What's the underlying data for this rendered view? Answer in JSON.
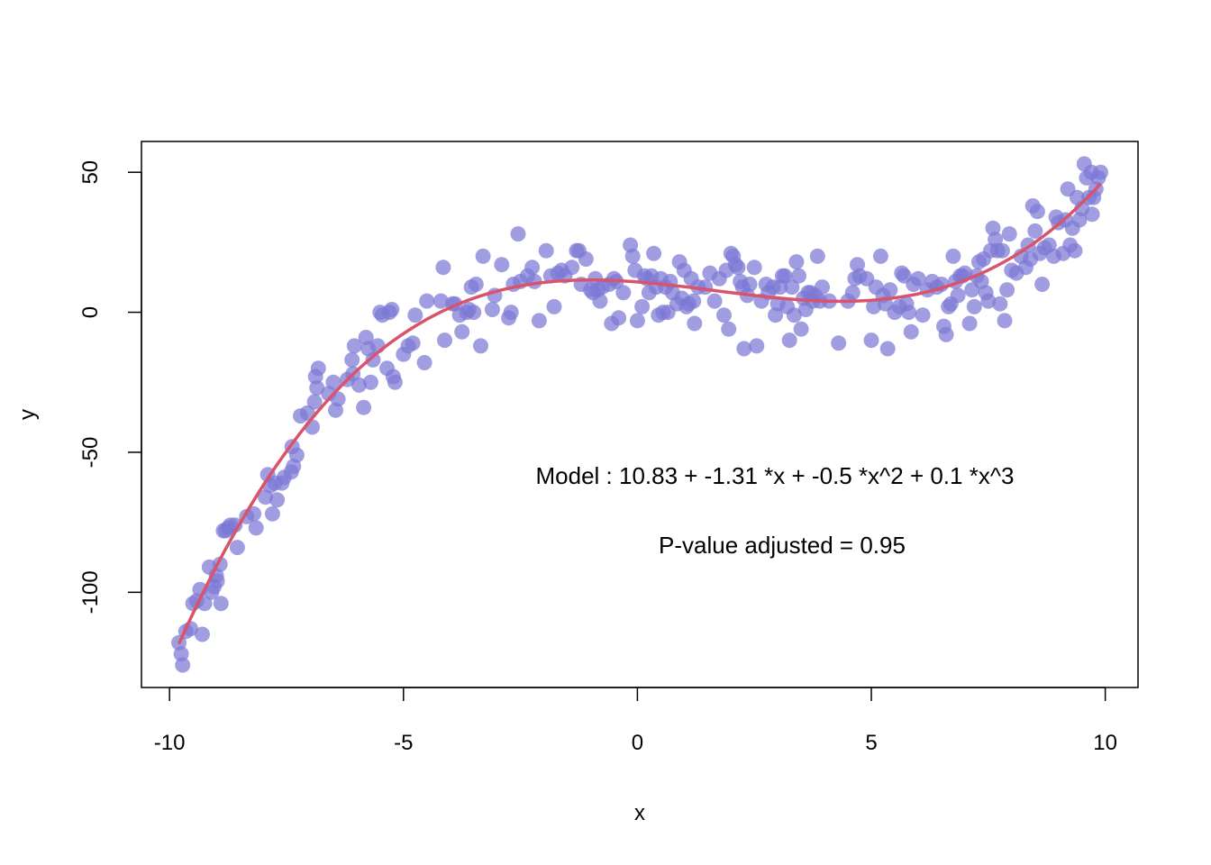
{
  "chart_data": {
    "type": "scatter",
    "title": "",
    "xlabel": "x",
    "ylabel": "y",
    "xlim": [
      -10.6,
      10.7
    ],
    "ylim": [
      -134,
      61
    ],
    "x_ticks": [
      -10,
      -5,
      0,
      5,
      10
    ],
    "x_tick_labels": [
      "-10",
      "-5",
      "0",
      "5",
      "10"
    ],
    "y_ticks": [
      -100,
      -50,
      0,
      50
    ],
    "y_tick_labels": [
      "-100",
      "-50",
      "0",
      "50"
    ],
    "grid": false,
    "legend": "none",
    "point_color": "#7b78d6",
    "line_color": "#d9536b",
    "annotations": [
      "Model :  10.83  +  -1.31 *x + -0.5 *x^2 + 0.1 *x^3",
      "P-value adjusted =  0.95"
    ],
    "fit": {
      "name": "",
      "coefficients": [
        10.83,
        -1.31,
        -0.5,
        0.1
      ],
      "x_range": [
        -9.8,
        9.9
      ]
    },
    "points": [
      [
        -9.8,
        -118
      ],
      [
        -9.75,
        -122
      ],
      [
        -9.72,
        -126
      ],
      [
        -9.65,
        -114
      ],
      [
        -9.55,
        -113
      ],
      [
        -9.5,
        -104
      ],
      [
        -9.42,
        -103
      ],
      [
        -9.35,
        -99
      ],
      [
        -9.3,
        -115
      ],
      [
        -9.25,
        -104
      ],
      [
        -9.15,
        -91
      ],
      [
        -9.1,
        -100
      ],
      [
        -9.05,
        -98
      ],
      [
        -9.0,
        -94
      ],
      [
        -8.98,
        -96
      ],
      [
        -8.92,
        -90
      ],
      [
        -8.9,
        -104
      ],
      [
        -8.85,
        -78
      ],
      [
        -8.8,
        -78
      ],
      [
        -8.75,
        -77
      ],
      [
        -8.7,
        -76
      ],
      [
        -8.6,
        -76
      ],
      [
        -8.55,
        -84
      ],
      [
        -8.35,
        -73
      ],
      [
        -8.2,
        -72
      ],
      [
        -8.15,
        -77
      ],
      [
        -7.95,
        -66
      ],
      [
        -7.9,
        -58
      ],
      [
        -7.85,
        -62
      ],
      [
        -7.8,
        -72
      ],
      [
        -7.75,
        -61
      ],
      [
        -7.7,
        -67
      ],
      [
        -7.6,
        -61
      ],
      [
        -7.55,
        -59
      ],
      [
        -7.4,
        -57
      ],
      [
        -7.38,
        -48
      ],
      [
        -7.35,
        -55
      ],
      [
        -7.28,
        -51
      ],
      [
        -7.2,
        -37
      ],
      [
        -7.05,
        -36
      ],
      [
        -6.95,
        -41
      ],
      [
        -6.9,
        -32
      ],
      [
        -6.88,
        -23
      ],
      [
        -6.85,
        -27
      ],
      [
        -6.82,
        -20
      ],
      [
        -6.6,
        -29
      ],
      [
        -6.5,
        -25
      ],
      [
        -6.45,
        -35
      ],
      [
        -6.4,
        -31
      ],
      [
        -6.2,
        -24
      ],
      [
        -6.1,
        -17
      ],
      [
        -6.08,
        -22
      ],
      [
        -6.05,
        -12
      ],
      [
        -5.95,
        -26
      ],
      [
        -5.85,
        -34
      ],
      [
        -5.8,
        -9
      ],
      [
        -5.75,
        -13
      ],
      [
        -5.7,
        -25
      ],
      [
        -5.65,
        -17
      ],
      [
        -5.55,
        -12
      ],
      [
        -5.5,
        0
      ],
      [
        -5.45,
        -1
      ],
      [
        -5.35,
        -20
      ],
      [
        -5.3,
        0
      ],
      [
        -5.25,
        1
      ],
      [
        -5.22,
        -23
      ],
      [
        -5.18,
        -25
      ],
      [
        -5.0,
        -15
      ],
      [
        -4.9,
        -12
      ],
      [
        -4.8,
        -11
      ],
      [
        -4.75,
        -1
      ],
      [
        -4.55,
        -18
      ],
      [
        -4.5,
        4
      ],
      [
        -4.2,
        4
      ],
      [
        -4.15,
        16
      ],
      [
        -4.12,
        -10
      ],
      [
        -3.95,
        3
      ],
      [
        -3.9,
        3
      ],
      [
        -3.8,
        -1
      ],
      [
        -3.75,
        -7
      ],
      [
        -3.65,
        0
      ],
      [
        -3.6,
        1
      ],
      [
        -3.55,
        9
      ],
      [
        -3.5,
        0
      ],
      [
        -3.45,
        10
      ],
      [
        -3.35,
        -12
      ],
      [
        -3.3,
        20
      ],
      [
        -3.1,
        1
      ],
      [
        -3.05,
        6
      ],
      [
        -2.9,
        17
      ],
      [
        -2.75,
        -2
      ],
      [
        -2.7,
        0
      ],
      [
        -2.65,
        10
      ],
      [
        -2.55,
        28
      ],
      [
        -2.5,
        11
      ],
      [
        -2.35,
        13
      ],
      [
        -2.25,
        16
      ],
      [
        -2.2,
        11
      ],
      [
        -2.1,
        -3
      ],
      [
        -1.95,
        22
      ],
      [
        -1.85,
        13
      ],
      [
        -1.78,
        2
      ],
      [
        -1.7,
        14
      ],
      [
        -1.62,
        15
      ],
      [
        -1.55,
        13
      ],
      [
        -1.4,
        16
      ],
      [
        -1.3,
        22
      ],
      [
        -1.25,
        22
      ],
      [
        -1.2,
        10
      ],
      [
        -1.1,
        19
      ],
      [
        -1.0,
        8
      ],
      [
        -0.95,
        7
      ],
      [
        -0.9,
        12
      ],
      [
        -0.85,
        8
      ],
      [
        -0.8,
        4
      ],
      [
        -0.75,
        9
      ],
      [
        -0.6,
        10
      ],
      [
        -0.55,
        -4
      ],
      [
        -0.5,
        12
      ],
      [
        -0.45,
        11
      ],
      [
        -0.4,
        -2
      ],
      [
        -0.3,
        7
      ],
      [
        -0.15,
        24
      ],
      [
        -0.1,
        20
      ],
      [
        -0.05,
        15
      ],
      [
        0.0,
        -3
      ],
      [
        0.1,
        2
      ],
      [
        0.15,
        13
      ],
      [
        0.2,
        12
      ],
      [
        0.25,
        7
      ],
      [
        0.3,
        13
      ],
      [
        0.35,
        21
      ],
      [
        0.4,
        9
      ],
      [
        0.45,
        -1
      ],
      [
        0.5,
        12
      ],
      [
        0.55,
        0
      ],
      [
        0.6,
        9
      ],
      [
        0.65,
        0
      ],
      [
        0.7,
        11
      ],
      [
        0.75,
        7
      ],
      [
        0.85,
        3
      ],
      [
        0.9,
        18
      ],
      [
        0.95,
        5
      ],
      [
        1.0,
        15
      ],
      [
        1.05,
        2
      ],
      [
        1.1,
        3
      ],
      [
        1.15,
        12
      ],
      [
        1.2,
        4
      ],
      [
        1.22,
        -4
      ],
      [
        1.3,
        9
      ],
      [
        1.45,
        9
      ],
      [
        1.55,
        14
      ],
      [
        1.65,
        4
      ],
      [
        1.75,
        12
      ],
      [
        1.85,
        -1
      ],
      [
        1.9,
        15
      ],
      [
        1.95,
        -6
      ],
      [
        2.0,
        21
      ],
      [
        2.05,
        20
      ],
      [
        2.1,
        17
      ],
      [
        2.15,
        16
      ],
      [
        2.2,
        11
      ],
      [
        2.25,
        9
      ],
      [
        2.28,
        -13
      ],
      [
        2.35,
        6
      ],
      [
        2.4,
        10
      ],
      [
        2.5,
        16
      ],
      [
        2.55,
        -12
      ],
      [
        2.65,
        4
      ],
      [
        2.75,
        10
      ],
      [
        2.8,
        7
      ],
      [
        2.9,
        9
      ],
      [
        2.95,
        -1
      ],
      [
        3.0,
        3
      ],
      [
        3.05,
        9
      ],
      [
        3.1,
        13
      ],
      [
        3.15,
        13
      ],
      [
        3.2,
        2
      ],
      [
        3.25,
        -10
      ],
      [
        3.3,
        9
      ],
      [
        3.35,
        -1
      ],
      [
        3.4,
        18
      ],
      [
        3.45,
        13
      ],
      [
        3.5,
        -6
      ],
      [
        3.55,
        5
      ],
      [
        3.6,
        1
      ],
      [
        3.65,
        7
      ],
      [
        3.7,
        7
      ],
      [
        3.75,
        4
      ],
      [
        3.8,
        6
      ],
      [
        3.85,
        20
      ],
      [
        3.9,
        4
      ],
      [
        3.95,
        9
      ],
      [
        4.1,
        4
      ],
      [
        4.3,
        -11
      ],
      [
        4.5,
        4
      ],
      [
        4.6,
        7
      ],
      [
        4.65,
        12
      ],
      [
        4.7,
        17
      ],
      [
        4.75,
        13
      ],
      [
        4.9,
        12
      ],
      [
        5.0,
        -10
      ],
      [
        5.05,
        2
      ],
      [
        5.1,
        9
      ],
      [
        5.2,
        20
      ],
      [
        5.25,
        6
      ],
      [
        5.3,
        3
      ],
      [
        5.35,
        -13
      ],
      [
        5.4,
        8
      ],
      [
        5.5,
        0
      ],
      [
        5.6,
        2
      ],
      [
        5.65,
        14
      ],
      [
        5.7,
        13
      ],
      [
        5.75,
        3
      ],
      [
        5.8,
        0
      ],
      [
        5.85,
        -7
      ],
      [
        5.9,
        10
      ],
      [
        6.0,
        12
      ],
      [
        6.1,
        -1
      ],
      [
        6.2,
        8
      ],
      [
        6.3,
        11
      ],
      [
        6.4,
        9
      ],
      [
        6.5,
        10
      ],
      [
        6.55,
        -5
      ],
      [
        6.6,
        -8
      ],
      [
        6.65,
        2
      ],
      [
        6.7,
        3
      ],
      [
        6.75,
        20
      ],
      [
        6.8,
        11
      ],
      [
        6.85,
        6
      ],
      [
        6.9,
        13
      ],
      [
        6.95,
        13
      ],
      [
        7.0,
        14
      ],
      [
        7.1,
        -4
      ],
      [
        7.15,
        8
      ],
      [
        7.2,
        2
      ],
      [
        7.25,
        13
      ],
      [
        7.3,
        18
      ],
      [
        7.35,
        11
      ],
      [
        7.4,
        19
      ],
      [
        7.45,
        7
      ],
      [
        7.5,
        4
      ],
      [
        7.55,
        22
      ],
      [
        7.6,
        30
      ],
      [
        7.65,
        26
      ],
      [
        7.7,
        22
      ],
      [
        7.75,
        3
      ],
      [
        7.8,
        22
      ],
      [
        7.85,
        -3
      ],
      [
        7.9,
        8
      ],
      [
        7.95,
        28
      ],
      [
        8.0,
        15
      ],
      [
        8.1,
        14
      ],
      [
        8.2,
        20
      ],
      [
        8.3,
        16
      ],
      [
        8.35,
        24
      ],
      [
        8.4,
        19
      ],
      [
        8.45,
        38
      ],
      [
        8.5,
        29
      ],
      [
        8.55,
        36
      ],
      [
        8.6,
        21
      ],
      [
        8.65,
        10
      ],
      [
        8.7,
        23
      ],
      [
        8.8,
        24
      ],
      [
        8.9,
        20
      ],
      [
        8.95,
        34
      ],
      [
        9.0,
        32
      ],
      [
        9.1,
        21
      ],
      [
        9.15,
        33
      ],
      [
        9.2,
        44
      ],
      [
        9.25,
        24
      ],
      [
        9.3,
        30
      ],
      [
        9.35,
        22
      ],
      [
        9.4,
        41
      ],
      [
        9.45,
        33
      ],
      [
        9.5,
        37
      ],
      [
        9.55,
        53
      ],
      [
        9.6,
        48
      ],
      [
        9.65,
        41
      ],
      [
        9.7,
        50
      ],
      [
        9.72,
        35
      ],
      [
        9.75,
        41
      ],
      [
        9.8,
        44
      ],
      [
        9.85,
        48
      ],
      [
        9.9,
        50
      ]
    ]
  }
}
